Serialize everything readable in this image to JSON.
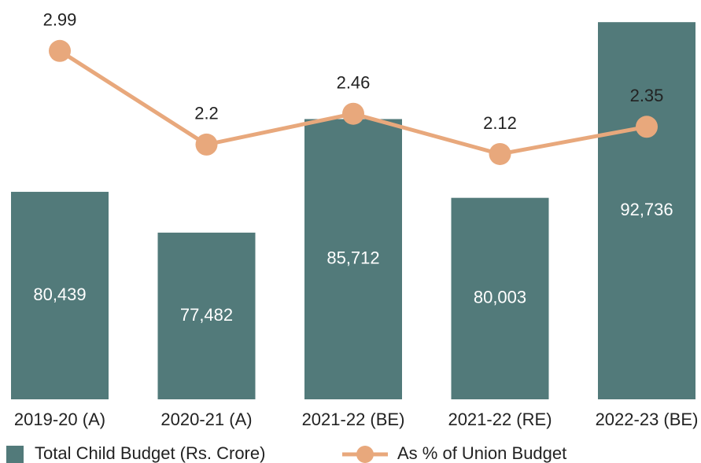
{
  "chart_data": {
    "type": "bar+line",
    "categories": [
      "2019-20 (A)",
      "2020-21 (A)",
      "2021-22 (BE)",
      "2021-22 (RE)",
      "2022-23 (BE)"
    ],
    "series": [
      {
        "name": "Total Child Budget (Rs. Crore)",
        "type": "bar",
        "color": "#527a7a",
        "values": [
          80439,
          77482,
          85712,
          80003,
          92736
        ],
        "value_labels": [
          "80,439",
          "77,482",
          "85,712",
          "80,003",
          "92,736"
        ]
      },
      {
        "name": "As % of Union Budget",
        "type": "line",
        "axis": "y2",
        "color": "#e8a87c",
        "values": [
          2.99,
          2.2,
          2.46,
          2.12,
          2.35
        ]
      }
    ],
    "ylim": [
      65400,
      94000
    ],
    "y2lim": [
      0.05,
      3.38
    ],
    "legend": "bottom"
  }
}
